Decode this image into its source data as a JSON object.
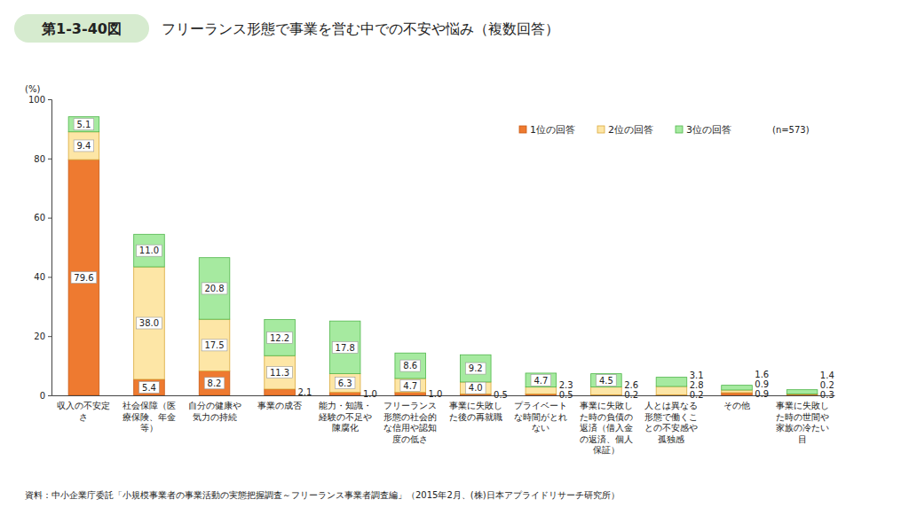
{
  "chart_data": {
    "type": "bar",
    "stacked": true,
    "data_labels": true,
    "grid": false,
    "legend": "top-right",
    "figure_label": "第1-3-40図",
    "title": "フリーランス形態で事業を営む中での不安や悩み（複数回答）",
    "ylabel": "(%)",
    "annotations": [
      "(n=573)"
    ],
    "source": "資料：中小企業庁委託「小規模事業者の事業活動の実態把握調査～フリーランス事業者調査編」（2015年2月、(株)日本アプライドリサーチ研究所）",
    "ylim": [
      0,
      100
    ],
    "yticks": [
      0,
      20,
      40,
      60,
      80,
      100
    ],
    "categories": [
      "収入の不安定さ",
      "社会保障（医療保険、年金等）",
      "自分の健康や気力の持続",
      "事業の成否",
      "能力・知識・経験の不足や陳腐化",
      "フリーランス形態の社会的な信用や認知度の低さ",
      "事業に失敗した後の再就職",
      "プライベートな時間がとれない",
      "事業に失敗した時の負債の返済（借入金の返済、個人保証）",
      "人とは異なる形態で働くことの不安感や孤独感",
      "その他",
      "事業に失敗した時の世間や家族の冷たい目"
    ],
    "series": [
      {
        "name": "1位の回答",
        "color": "#ee7a30",
        "values": [
          79.6,
          5.4,
          8.2,
          2.1,
          1.0,
          1.0,
          0.5,
          0.5,
          0.2,
          0.2,
          0.9,
          0.3
        ],
        "value_labels": [
          "79.6",
          "5.4",
          "8.2",
          "2.1",
          "1.0",
          "1.0",
          "0.5",
          "0.5",
          "0.2",
          "0.2",
          "0.9",
          "0.3"
        ]
      },
      {
        "name": "2位の回答",
        "color": "#fde6a6",
        "values": [
          9.4,
          38.0,
          17.5,
          11.3,
          6.3,
          4.7,
          4.0,
          2.3,
          2.6,
          2.8,
          0.9,
          0.2
        ],
        "value_labels": [
          "9.4",
          "38.0",
          "17.5",
          "11.3",
          "6.3",
          "4.7",
          "4.0",
          "2.3",
          "2.6",
          "2.8",
          "0.9",
          "0.2"
        ]
      },
      {
        "name": "3位の回答",
        "color": "#a6eaa0",
        "values": [
          5.1,
          11.0,
          20.8,
          12.2,
          17.8,
          8.6,
          9.2,
          4.7,
          4.5,
          3.1,
          1.6,
          1.4
        ],
        "value_labels": [
          "5.1",
          "11.0",
          "20.8",
          "12.2",
          "17.8",
          "8.6",
          "9.2",
          "4.7",
          "4.5",
          "3.1",
          "1.6",
          "1.4"
        ]
      }
    ]
  }
}
